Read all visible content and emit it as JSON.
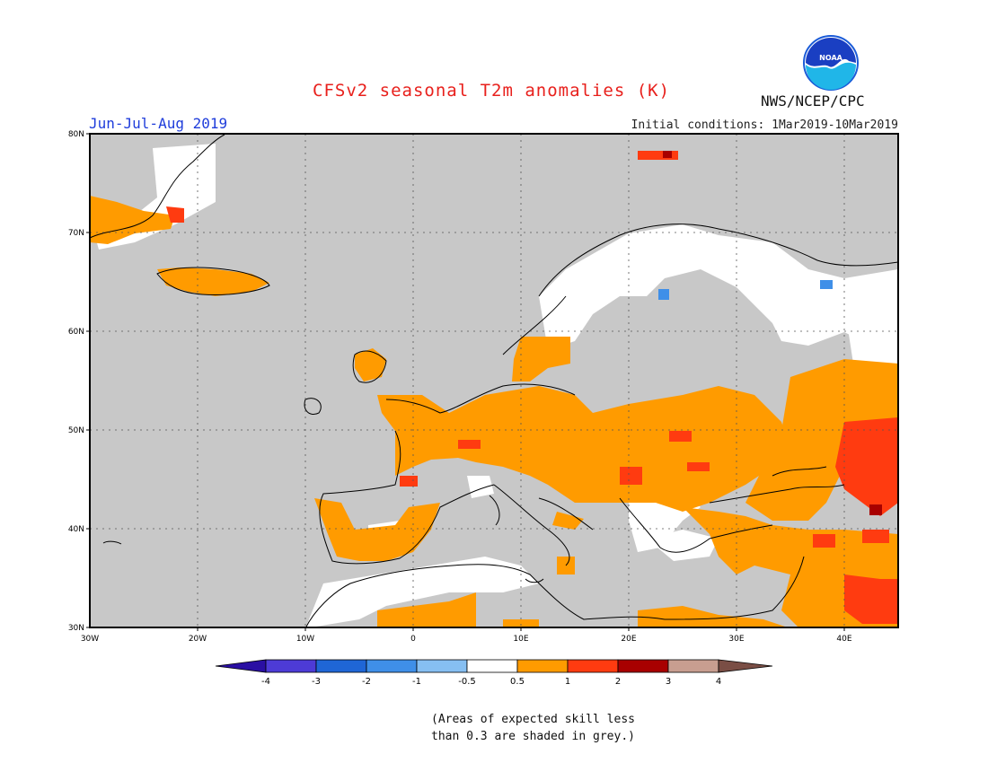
{
  "header": {
    "title": "CFSv2 seasonal T2m anomalies (K)",
    "agency": "NWS/NCEP/CPC",
    "logo_text": "NOAA",
    "period": "Jun-Jul-Aug 2019",
    "initial_conditions": "Initial conditions: 1Mar2019-10Mar2019"
  },
  "map": {
    "lon_range": [
      -30,
      45
    ],
    "lat_range": [
      30,
      80
    ],
    "lon_ticks": [
      "30W",
      "20W",
      "10W",
      "0",
      "10E",
      "20E",
      "30E",
      "40E"
    ],
    "lat_ticks": [
      "80N",
      "70N",
      "60N",
      "50N",
      "40N",
      "30N"
    ],
    "grey_color": "#c8c8c8",
    "background_color": "#ffffff"
  },
  "legend": {
    "tick_labels": [
      "-4",
      "-3",
      "-2",
      "-1",
      "-0.5",
      "0.5",
      "1",
      "2",
      "3",
      "4"
    ],
    "colors": [
      "#2a0fa3",
      "#4d3bd6",
      "#1f66d6",
      "#3f8fe8",
      "#86bff2",
      "#ffffff",
      "#ff9b00",
      "#ff3b10",
      "#a80000",
      "#c89e90",
      "#7a4e45"
    ]
  },
  "footnote": {
    "line1": "(Areas of expected skill less",
    "line2": "than 0.3 are shaded in grey.)"
  }
}
